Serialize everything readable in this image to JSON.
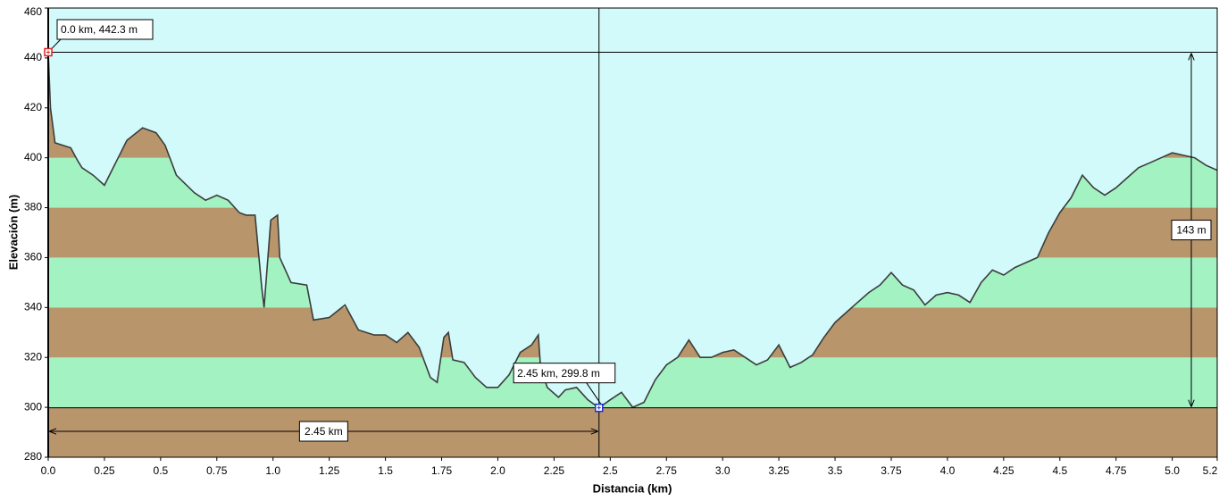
{
  "chart_data": {
    "type": "elevation-profile",
    "x_label": "Distancia  (km)",
    "y_label": "Elevación (m)",
    "xlim": [
      0,
      5.2
    ],
    "ylim": [
      280,
      460
    ],
    "xticks": [
      {
        "value": 0,
        "label": "0.0"
      },
      0.25,
      0.5,
      0.75,
      {
        "value": 1,
        "label": "1.0"
      },
      1.25,
      1.5,
      1.75,
      {
        "value": 2,
        "label": "2.0"
      },
      2.25,
      2.5,
      2.75,
      {
        "value": 3,
        "label": "3.0"
      },
      3.25,
      3.5,
      3.75,
      {
        "value": 4,
        "label": "4.0"
      },
      4.25,
      4.5,
      4.75,
      {
        "value": 5,
        "label": "5.0"
      },
      5.2
    ],
    "yticks": [
      280,
      300,
      320,
      340,
      360,
      380,
      400,
      420,
      440,
      460
    ],
    "sky_color": "#d2fafa",
    "band_colors": [
      "#b8956b",
      "#a2f2c2"
    ],
    "line_color": "#3c3c3c",
    "x": [
      0,
      0.01,
      0.03,
      0.1,
      0.13,
      0.15,
      0.2,
      0.25,
      0.3,
      0.35,
      0.42,
      0.48,
      0.52,
      0.57,
      0.65,
      0.7,
      0.75,
      0.8,
      0.85,
      0.88,
      0.92,
      0.95,
      0.96,
      0.99,
      1.02,
      1.03,
      1.08,
      1.15,
      1.18,
      1.25,
      1.32,
      1.38,
      1.45,
      1.5,
      1.55,
      1.6,
      1.65,
      1.7,
      1.73,
      1.76,
      1.78,
      1.8,
      1.85,
      1.9,
      1.95,
      2.0,
      2.05,
      2.1,
      2.15,
      2.18,
      2.19,
      2.22,
      2.27,
      2.3,
      2.35,
      2.4,
      2.45,
      2.5,
      2.55,
      2.6,
      2.65,
      2.7,
      2.75,
      2.8,
      2.85,
      2.9,
      2.95,
      3.0,
      3.05,
      3.1,
      3.15,
      3.2,
      3.25,
      3.3,
      3.35,
      3.4,
      3.45,
      3.5,
      3.55,
      3.6,
      3.65,
      3.7,
      3.75,
      3.8,
      3.85,
      3.9,
      3.95,
      4.0,
      4.05,
      4.1,
      4.15,
      4.2,
      4.25,
      4.3,
      4.35,
      4.4,
      4.45,
      4.5,
      4.55,
      4.6,
      4.65,
      4.7,
      4.75,
      4.8,
      4.85,
      4.9,
      4.95,
      5.0,
      5.05,
      5.1,
      5.15,
      5.2
    ],
    "values": [
      442.3,
      420,
      406,
      404,
      399,
      396,
      393,
      389,
      398,
      407,
      412,
      410,
      405,
      393,
      386,
      383,
      385,
      383,
      378,
      377,
      377,
      348,
      340,
      375,
      377,
      360,
      350,
      349,
      335,
      336,
      341,
      331,
      329,
      329,
      326,
      330,
      324,
      312,
      310,
      328,
      330,
      319,
      318,
      312,
      308,
      308,
      313,
      322,
      325,
      329,
      316,
      308,
      304,
      307,
      308,
      303,
      299.8,
      303,
      306,
      300,
      302,
      311,
      317,
      320,
      327,
      320,
      320,
      322,
      323,
      320,
      317,
      319,
      325,
      316,
      318,
      321,
      328,
      334,
      338,
      342,
      346,
      349,
      354,
      349,
      347,
      341,
      345,
      346,
      345,
      342,
      350,
      355,
      353,
      356,
      358,
      360,
      370,
      378,
      384,
      393,
      388,
      385,
      388,
      392,
      396,
      398,
      400,
      402,
      401,
      400,
      397,
      395
    ],
    "markers": [
      {
        "x": 0,
        "y": 442.3,
        "label": "0.0 km, 442.3 m",
        "color": "#e02020"
      },
      {
        "x": 2.45,
        "y": 299.8,
        "label": "2.45 km, 299.8 m",
        "color": "#2030e0"
      }
    ],
    "distance_label": "2.45 km",
    "rise_label": "143 m"
  }
}
